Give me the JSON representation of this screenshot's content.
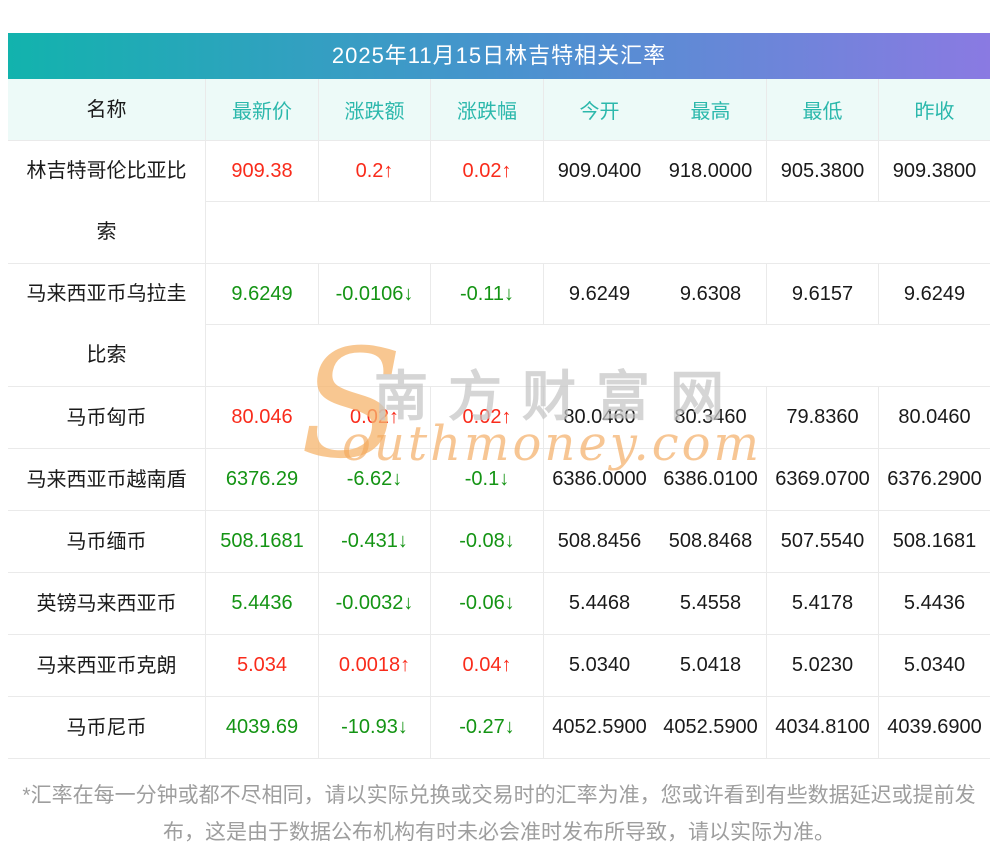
{
  "title_bar": {
    "text": "2025年11月15日林吉特相关汇率"
  },
  "table": {
    "columns": [
      "名称",
      "最新价",
      "涨跌额",
      "涨跌幅",
      "今开",
      "最高",
      "最低",
      "昨收"
    ],
    "rows": [
      {
        "name": "林吉特哥伦比亚比\n索",
        "latest": "909.38",
        "change": "0.2↑",
        "change_pct": "0.02↑",
        "open": "909.0400",
        "high": "918.0000",
        "low": "905.3800",
        "prev_close": "909.3800",
        "trend": "up"
      },
      {
        "name": "马来西亚币乌拉圭\n比索",
        "latest": "9.6249",
        "change": "-0.0106↓",
        "change_pct": "-0.11↓",
        "open": "9.6249",
        "high": "9.6308",
        "low": "9.6157",
        "prev_close": "9.6249",
        "trend": "down"
      },
      {
        "name": "马币匈币",
        "latest": "80.046",
        "change": "0.02↑",
        "change_pct": "0.02↑",
        "open": "80.0460",
        "high": "80.3460",
        "low": "79.8360",
        "prev_close": "80.0460",
        "trend": "up"
      },
      {
        "name": "马来西亚币越南盾",
        "latest": "6376.29",
        "change": "-6.62↓",
        "change_pct": "-0.1↓",
        "open": "6386.0000",
        "high": "6386.0100",
        "low": "6369.0700",
        "prev_close": "6376.2900",
        "trend": "down"
      },
      {
        "name": "马币缅币",
        "latest": "508.1681",
        "change": "-0.431↓",
        "change_pct": "-0.08↓",
        "open": "508.8456",
        "high": "508.8468",
        "low": "507.5540",
        "prev_close": "508.1681",
        "trend": "down"
      },
      {
        "name": "英镑马来西亚币",
        "latest": "5.4436",
        "change": "-0.0032↓",
        "change_pct": "-0.06↓",
        "open": "5.4468",
        "high": "5.4558",
        "low": "5.4178",
        "prev_close": "5.4436",
        "trend": "down"
      },
      {
        "name": "马来西亚币克朗",
        "latest": "5.034",
        "change": "0.0018↑",
        "change_pct": "0.04↑",
        "open": "5.0340",
        "high": "5.0418",
        "low": "5.0230",
        "prev_close": "5.0340",
        "trend": "up"
      },
      {
        "name": "马币尼币",
        "latest": "4039.69",
        "change": "-10.93↓",
        "change_pct": "-0.27↓",
        "open": "4052.5900",
        "high": "4052.5900",
        "low": "4034.8100",
        "prev_close": "4039.6900",
        "trend": "down"
      }
    ]
  },
  "watermark": {
    "initial": "S",
    "cn": "南方财富网",
    "en": "outhmoney.com"
  },
  "footer": {
    "note": "*汇率在每一分钟或都不尽相同，请以实际兑换或交易时的汇率为准，您或许看到有些数据延迟或提前发布，这是由于数据公布机构有时未必会准时发布所导致，请以实际为准。"
  },
  "colors": {
    "up": "#f92b1b",
    "down": "#149414",
    "value_text": "#1a1a1a",
    "title_gradient_left": "#12b3ad",
    "title_gradient_mid": "#4a92cf",
    "title_gradient_right": "#8a7ae2",
    "header_row_bg": "#edfaf8",
    "header_row_text": "#2cb8ac",
    "border": "#eaeaea",
    "footer_text": "#9e9e9e",
    "watermark_orange": "#f4a95c",
    "watermark_gray": "#c6c6c6"
  }
}
